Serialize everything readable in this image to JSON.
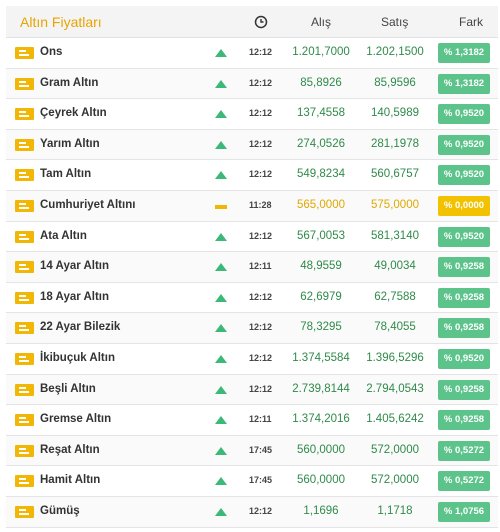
{
  "header": {
    "title": "Altın Fiyatları",
    "col_alis": "Alış",
    "col_satis": "Satış",
    "col_fark": "Fark",
    "clock_icon": "clock-icon"
  },
  "colors": {
    "accent": "#e8a400",
    "up": "#3cb878",
    "flat": "#f2b705",
    "badge_up": "#5cc38a",
    "badge_flat": "#f2c200"
  },
  "rows": [
    {
      "name": "Ons",
      "trend": "up",
      "time": "12:12",
      "alis": "1.201,7000",
      "satis": "1.202,1500",
      "fark": "% 1,3182"
    },
    {
      "name": "Gram Altın",
      "trend": "up",
      "time": "12:12",
      "alis": "85,8926",
      "satis": "85,9596",
      "fark": "% 1,3182"
    },
    {
      "name": "Çeyrek Altın",
      "trend": "up",
      "time": "12:12",
      "alis": "137,4558",
      "satis": "140,5989",
      "fark": "% 0,9520"
    },
    {
      "name": "Yarım Altın",
      "trend": "up",
      "time": "12:12",
      "alis": "274,0526",
      "satis": "281,1978",
      "fark": "% 0,9520"
    },
    {
      "name": "Tam Altın",
      "trend": "up",
      "time": "12:12",
      "alis": "549,8234",
      "satis": "560,6757",
      "fark": "% 0,9520"
    },
    {
      "name": "Cumhuriyet Altını",
      "trend": "flat",
      "time": "11:28",
      "alis": "565,0000",
      "satis": "575,0000",
      "fark": "% 0,0000"
    },
    {
      "name": "Ata Altın",
      "trend": "up",
      "time": "12:12",
      "alis": "567,0053",
      "satis": "581,3140",
      "fark": "% 0,9520"
    },
    {
      "name": "14 Ayar Altın",
      "trend": "up",
      "time": "12:11",
      "alis": "48,9559",
      "satis": "49,0034",
      "fark": "% 0,9258"
    },
    {
      "name": "18 Ayar Altın",
      "trend": "up",
      "time": "12:12",
      "alis": "62,6979",
      "satis": "62,7588",
      "fark": "% 0,9258"
    },
    {
      "name": "22 Ayar Bilezik",
      "trend": "up",
      "time": "12:12",
      "alis": "78,3295",
      "satis": "78,4055",
      "fark": "% 0,9258"
    },
    {
      "name": "İkibuçuk Altın",
      "trend": "up",
      "time": "12:12",
      "alis": "1.374,5584",
      "satis": "1.396,5296",
      "fark": "% 0,9520"
    },
    {
      "name": "Beşli Altın",
      "trend": "up",
      "time": "12:12",
      "alis": "2.739,8144",
      "satis": "2.794,0543",
      "fark": "% 0,9258"
    },
    {
      "name": "Gremse Altın",
      "trend": "up",
      "time": "12:11",
      "alis": "1.374,2016",
      "satis": "1.405,6242",
      "fark": "% 0,9258"
    },
    {
      "name": "Reşat Altın",
      "trend": "up",
      "time": "17:45",
      "alis": "560,0000",
      "satis": "572,0000",
      "fark": "% 0,5272"
    },
    {
      "name": "Hamit Altın",
      "trend": "up",
      "time": "17:45",
      "alis": "560,0000",
      "satis": "572,0000",
      "fark": "% 0,5272"
    },
    {
      "name": "Gümüş",
      "trend": "up",
      "time": "12:12",
      "alis": "1,1696",
      "satis": "1,1718",
      "fark": "% 1,0756"
    }
  ]
}
